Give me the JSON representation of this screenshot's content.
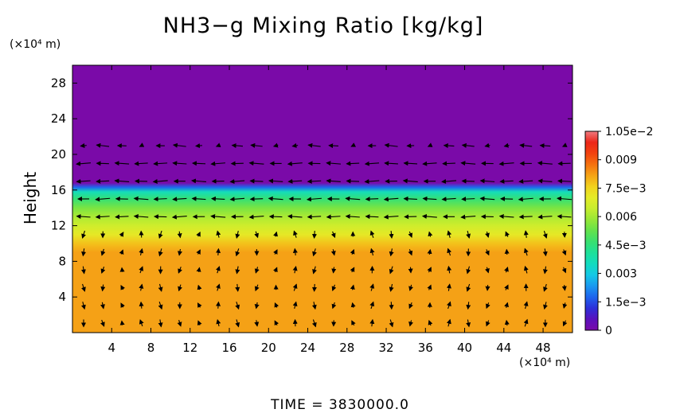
{
  "chart_data": {
    "type": "heatmap",
    "title": "NH3−g Mixing Ratio [kg/kg]",
    "ylabel": "Height",
    "x_unit": "(×10⁴ m)",
    "y_unit": "(×10⁴ m)",
    "time_label": "TIME  =  3830000.0",
    "xlim": [
      0,
      51
    ],
    "ylim": [
      0,
      30
    ],
    "x_ticks": [
      4,
      8,
      12,
      16,
      20,
      24,
      28,
      32,
      36,
      40,
      44,
      48
    ],
    "y_ticks": [
      4,
      8,
      12,
      16,
      20,
      24,
      28
    ],
    "colorbar": {
      "range": [
        0,
        0.0105
      ],
      "ticks": [
        {
          "value": 0,
          "label": "0"
        },
        {
          "value": 0.0015,
          "label": "1.5e−3"
        },
        {
          "value": 0.003,
          "label": "0.003"
        },
        {
          "value": 0.0045,
          "label": "4.5e−3"
        },
        {
          "value": 0.006,
          "label": "0.006"
        },
        {
          "value": 0.0075,
          "label": "7.5e−3"
        },
        {
          "value": 0.009,
          "label": "0.009"
        },
        {
          "value": 0.0105,
          "label": "1.05e−2"
        }
      ],
      "colors": [
        "#7a0aa8",
        "#5a11bd",
        "#2d2fd9",
        "#1e64ee",
        "#1a98f0",
        "#14c8e6",
        "#12dcc0",
        "#1ee09a",
        "#38e070",
        "#63e24c",
        "#96e737",
        "#c6ed2e",
        "#e4ec28",
        "#f2d21e",
        "#f5a416",
        "#f5720f",
        "#f2420f",
        "#ec2618",
        "#f07a80"
      ]
    },
    "field_profile": [
      {
        "height": 0,
        "value": 0.0082
      },
      {
        "height": 9,
        "value": 0.0082
      },
      {
        "height": 10,
        "value": 0.0078
      },
      {
        "height": 11,
        "value": 0.0071
      },
      {
        "height": 12,
        "value": 0.0066
      },
      {
        "height": 13,
        "value": 0.0061
      },
      {
        "height": 14,
        "value": 0.0055
      },
      {
        "height": 15,
        "value": 0.0046
      },
      {
        "height": 15.8,
        "value": 0.0036
      },
      {
        "height": 16.3,
        "value": 0.0018
      },
      {
        "height": 16.8,
        "value": 0
      }
    ],
    "field_background_value": 0,
    "wind_vectors": "arrow field overlaid on the mixing ratio (strong leftward flow between 12 and 18)"
  }
}
